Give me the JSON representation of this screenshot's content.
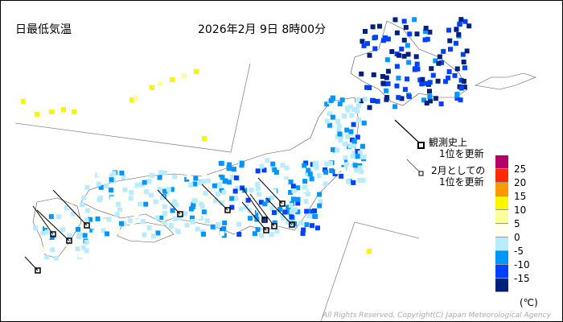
{
  "header": {
    "title": "日最低気温",
    "datetime": "2026年2月 9日 8時00分"
  },
  "legend_records": {
    "all_time": "観測史上\n1位を更新",
    "all_time_line1": "観測史上",
    "all_time_line2": "1位を更新",
    "month_line1": "2月としての",
    "month_line2": "1位を更新"
  },
  "color_scale": {
    "unit": "(℃)",
    "labels": [
      "25",
      "20",
      "15",
      "10",
      "5",
      "0",
      "-5",
      "-10",
      "-15"
    ],
    "colors": [
      "#b40068",
      "#ff2800",
      "#ff9900",
      "#faf500",
      "#ffff99",
      "#fffff0",
      "#b9ebff",
      "#0096ff",
      "#0041ff",
      "#002080"
    ]
  },
  "copyright": "All Rights Reserved, Copyright(C) Japan Meteorological Agency"
}
